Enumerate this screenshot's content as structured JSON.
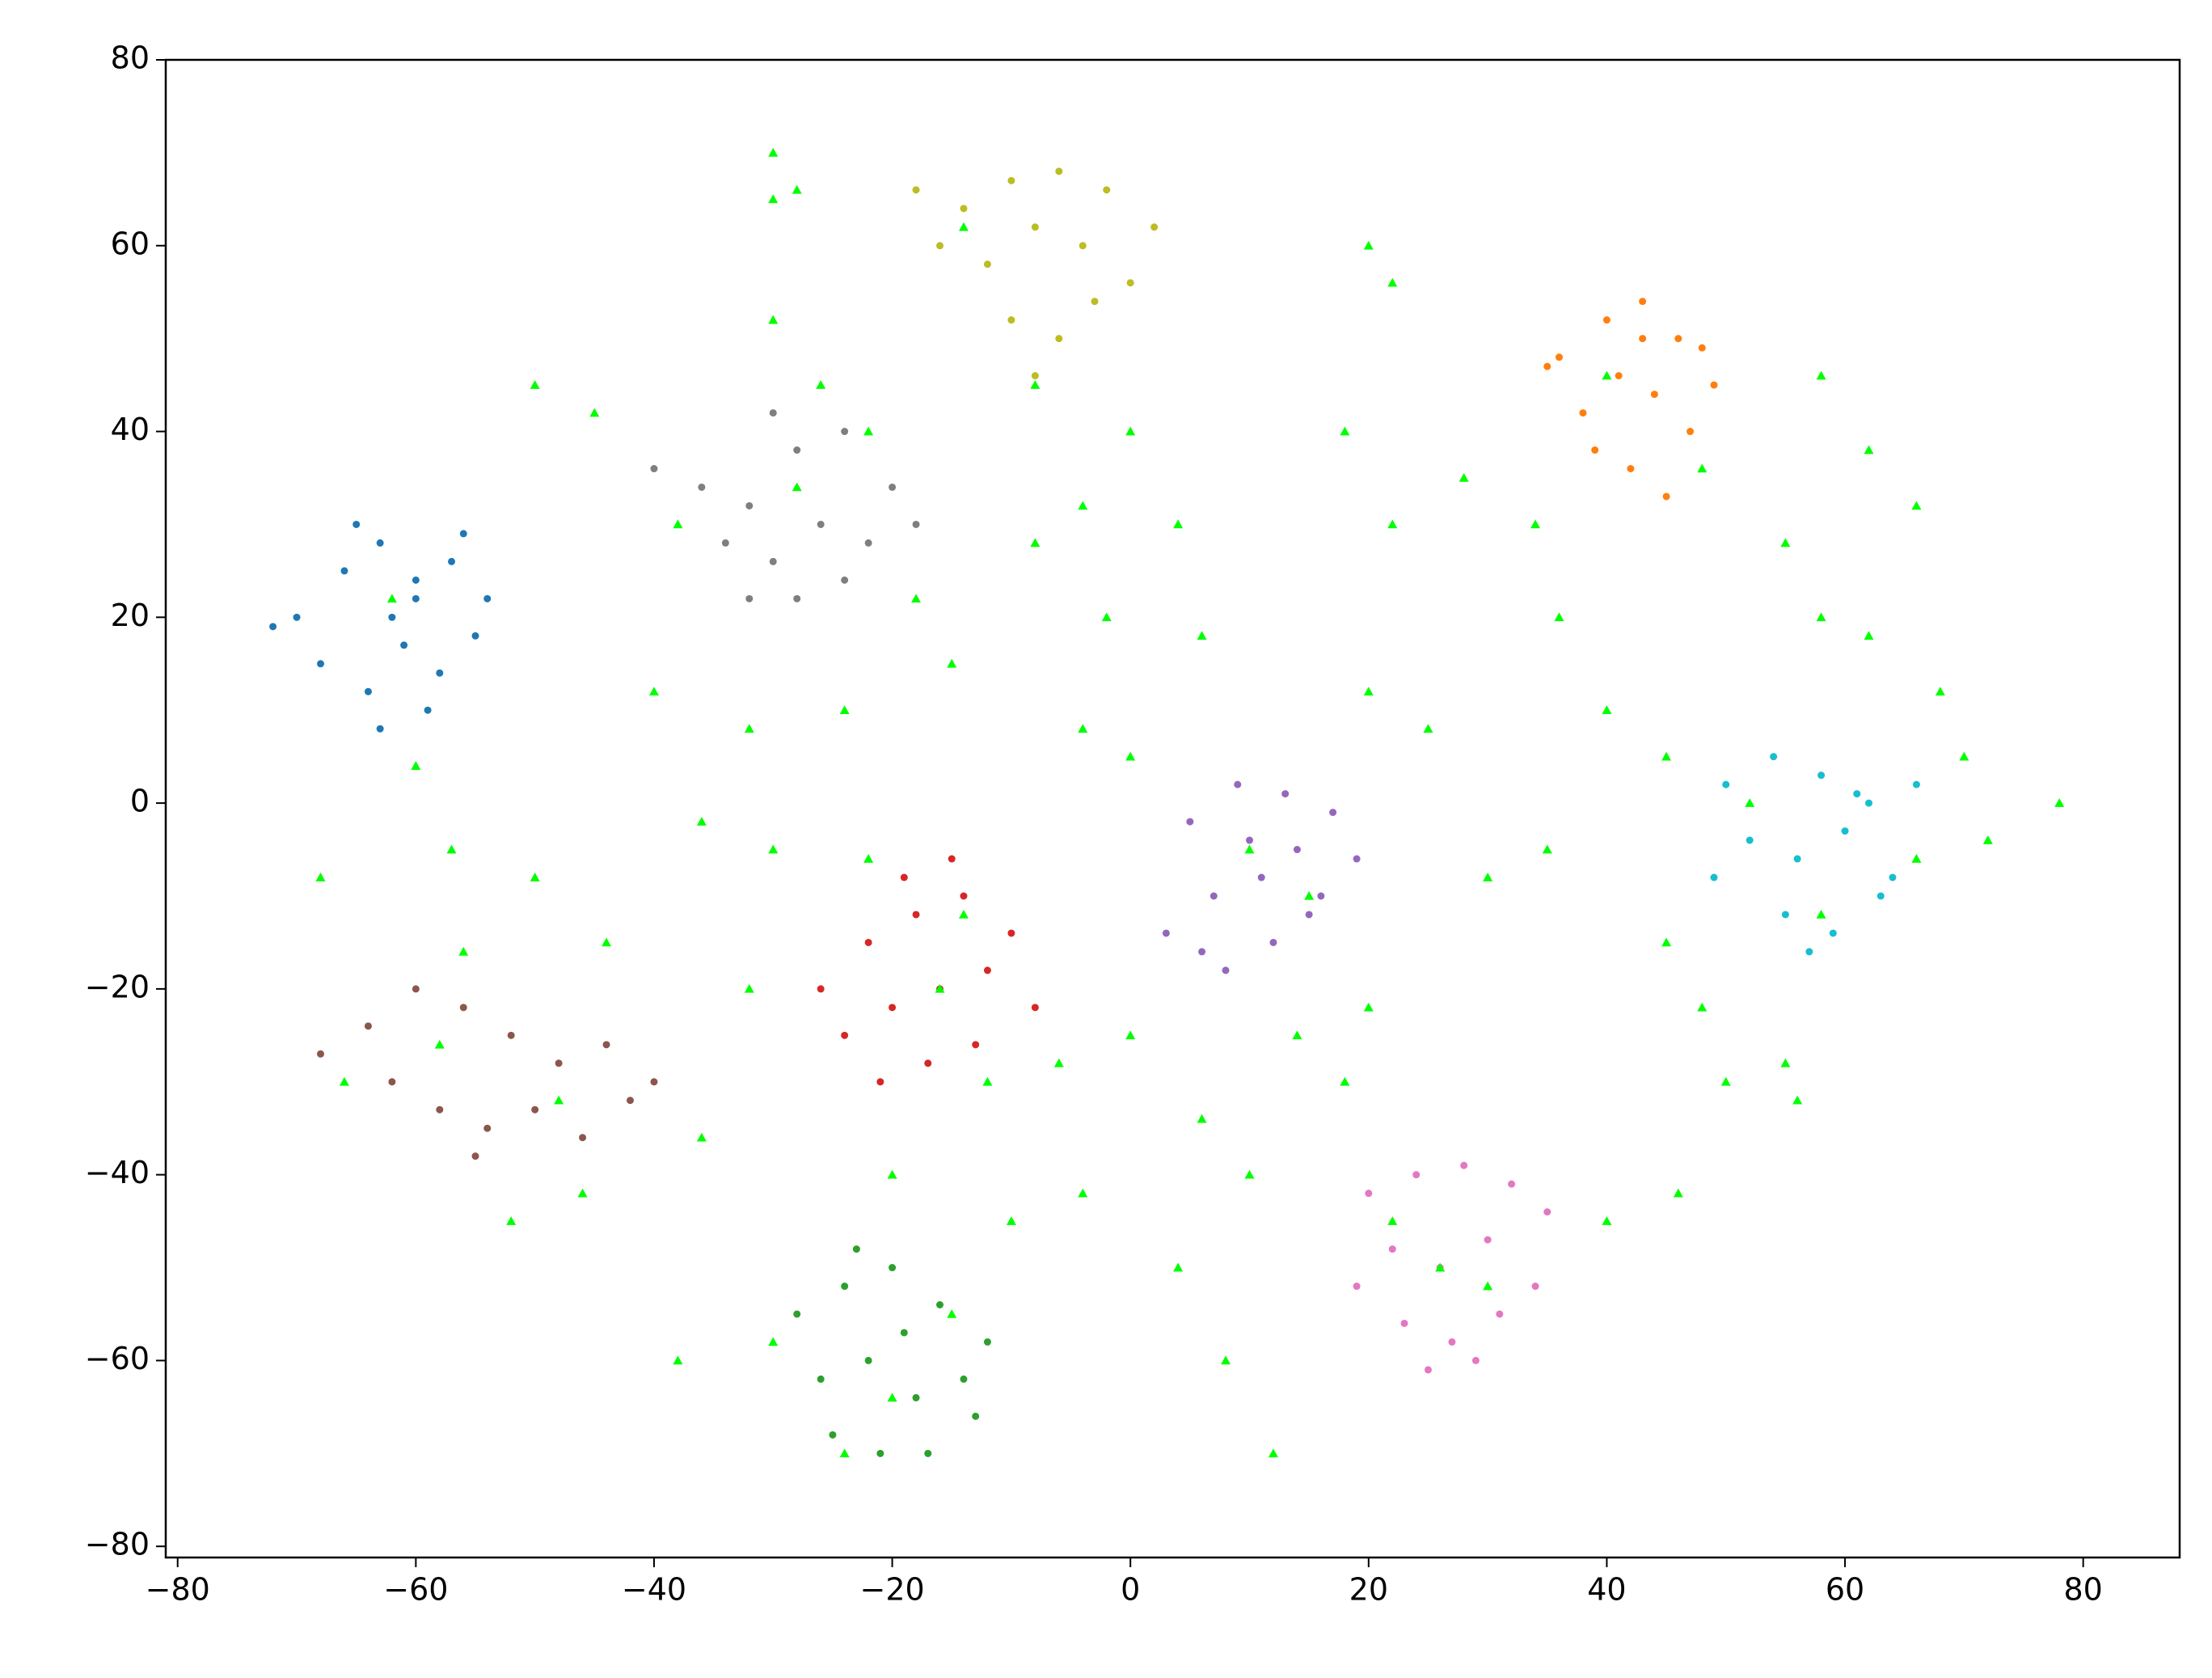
{
  "chart_data": {
    "type": "scatter",
    "xlim": [
      -81,
      88.1
    ],
    "ylim": [
      -81.2,
      80
    ],
    "xticks": [
      {
        "value": -80,
        "label": "−80"
      },
      {
        "value": -60,
        "label": "−60"
      },
      {
        "value": -40,
        "label": "−40"
      },
      {
        "value": -20,
        "label": "−20"
      },
      0,
      20,
      40,
      60,
      80
    ],
    "yticks": [
      {
        "value": -80,
        "label": "−80"
      },
      {
        "value": -60,
        "label": "−60"
      },
      {
        "value": -40,
        "label": "−40"
      },
      {
        "value": -20,
        "label": "−20"
      },
      0,
      20,
      40,
      60,
      80
    ],
    "grid": false,
    "series": [
      {
        "color": "#1f77b4",
        "marker": "circle",
        "x": [
          -70,
          -66,
          -63,
          -60,
          -57,
          -55,
          -68,
          -64,
          -61,
          -58,
          -54,
          -65,
          -62,
          -59,
          -72,
          -56,
          -60,
          -63
        ],
        "values": [
          20,
          25,
          28,
          22,
          26,
          18,
          15,
          12,
          17,
          14,
          22,
          30,
          20,
          10,
          19,
          29,
          24,
          8
        ]
      },
      {
        "color": "#ff7f0e",
        "marker": "circle",
        "x": [
          36,
          40,
          43,
          46,
          49,
          38,
          41,
          44,
          47,
          35,
          42,
          45,
          39,
          48,
          43
        ],
        "values": [
          48,
          52,
          54,
          50,
          45,
          42,
          46,
          44,
          40,
          47,
          36,
          33,
          38,
          49,
          50
        ]
      },
      {
        "color": "#2ca02c",
        "marker": "circle",
        "x": [
          -28,
          -24,
          -20,
          -16,
          -12,
          -26,
          -22,
          -18,
          -14,
          -25,
          -21,
          -17,
          -13,
          -19,
          -23
        ],
        "values": [
          -55,
          -52,
          -50,
          -54,
          -58,
          -62,
          -60,
          -64,
          -62,
          -68,
          -70,
          -70,
          -66,
          -57,
          -48
        ]
      },
      {
        "color": "#d62728",
        "marker": "circle",
        "x": [
          -26,
          -22,
          -18,
          -14,
          -10,
          -24,
          -20,
          -16,
          -12,
          -8,
          -21,
          -17,
          -13,
          -15,
          -19
        ],
        "values": [
          -20,
          -15,
          -12,
          -10,
          -14,
          -25,
          -22,
          -20,
          -18,
          -22,
          -30,
          -28,
          -26,
          -6,
          -8
        ]
      },
      {
        "color": "#9467bd",
        "marker": "circle",
        "x": [
          5,
          9,
          13,
          17,
          19,
          7,
          11,
          15,
          3,
          8,
          12,
          16,
          10,
          14,
          6
        ],
        "values": [
          -2,
          2,
          1,
          -1,
          -6,
          -10,
          -8,
          -12,
          -14,
          -18,
          -15,
          -10,
          -4,
          -5,
          -16
        ]
      },
      {
        "color": "#8c564b",
        "marker": "circle",
        "x": [
          -68,
          -64,
          -60,
          -56,
          -52,
          -48,
          -44,
          -40,
          -62,
          -58,
          -54,
          -50,
          -46,
          -42,
          -55
        ],
        "values": [
          -27,
          -24,
          -20,
          -22,
          -25,
          -28,
          -26,
          -30,
          -30,
          -33,
          -35,
          -33,
          -36,
          -32,
          -38
        ]
      },
      {
        "color": "#e377c2",
        "marker": "circle",
        "x": [
          20,
          24,
          28,
          32,
          35,
          22,
          26,
          30,
          34,
          23,
          27,
          31,
          25,
          29,
          19
        ],
        "values": [
          -42,
          -40,
          -39,
          -41,
          -44,
          -48,
          -50,
          -47,
          -52,
          -56,
          -58,
          -55,
          -61,
          -60,
          -52
        ]
      },
      {
        "color": "#7f7f7f",
        "marker": "circle",
        "x": [
          -40,
          -36,
          -32,
          -28,
          -24,
          -20,
          -34,
          -30,
          -26,
          -22,
          -18,
          -32,
          -28,
          -24,
          -30
        ],
        "values": [
          36,
          34,
          32,
          38,
          40,
          34,
          28,
          26,
          30,
          28,
          30,
          22,
          22,
          24,
          42
        ]
      },
      {
        "color": "#bcbd22",
        "marker": "circle",
        "x": [
          -18,
          -14,
          -10,
          -6,
          -2,
          2,
          -16,
          -12,
          -8,
          -4,
          0,
          -10,
          -6,
          -3,
          -8
        ],
        "values": [
          66,
          64,
          67,
          68,
          66,
          62,
          60,
          58,
          62,
          60,
          56,
          52,
          50,
          54,
          46
        ]
      },
      {
        "color": "#17becf",
        "marker": "circle",
        "x": [
          50,
          54,
          58,
          62,
          66,
          52,
          56,
          60,
          64,
          49,
          55,
          59,
          63,
          57,
          61
        ],
        "values": [
          2,
          5,
          3,
          0,
          2,
          -4,
          -6,
          -3,
          -8,
          -8,
          -12,
          -14,
          -10,
          -16,
          1
        ]
      },
      {
        "color": "#00ff00",
        "marker": "triangle",
        "x": [
          -30,
          -28,
          -50,
          -45,
          -30,
          -26,
          -22,
          -38,
          -18,
          -40,
          -32,
          -24,
          -36,
          -30,
          -22,
          -14,
          -60,
          -57,
          -68,
          -50,
          -56,
          -44,
          -66,
          -46,
          -52,
          -36,
          -32,
          -20,
          -10,
          -38,
          -30,
          -24,
          -15,
          -4,
          4,
          8,
          12,
          10,
          18,
          14,
          20,
          0,
          6,
          30,
          40,
          46,
          22,
          50,
          55,
          56,
          48,
          45,
          35,
          30,
          25,
          20,
          6,
          -4,
          0,
          -15,
          -8,
          -4,
          4,
          -8,
          0,
          -14,
          -30,
          20,
          22,
          18,
          22,
          28,
          34,
          36,
          48,
          55,
          58,
          62,
          66,
          58,
          62,
          68,
          70,
          78,
          72,
          40,
          45,
          52,
          58,
          66,
          -2,
          15,
          -12,
          -6,
          -48,
          -58,
          26,
          -20,
          -62,
          -28,
          -16,
          10,
          40
        ],
        "values": [
          70,
          66,
          45,
          42,
          52,
          45,
          40,
          30,
          22,
          12,
          8,
          10,
          -2,
          -5,
          -6,
          -12,
          4,
          -5,
          -8,
          -8,
          -16,
          -15,
          -30,
          -42,
          -45,
          -36,
          -20,
          -40,
          -45,
          -60,
          -58,
          -70,
          -55,
          -42,
          -50,
          -60,
          -70,
          -40,
          -30,
          -25,
          -22,
          -25,
          -34,
          -52,
          -45,
          -42,
          -45,
          -30,
          -28,
          -32,
          -22,
          -15,
          -5,
          -8,
          8,
          12,
          18,
          8,
          5,
          15,
          28,
          32,
          30,
          45,
          40,
          62,
          65,
          60,
          56,
          40,
          30,
          35,
          30,
          20,
          36,
          28,
          46,
          38,
          32,
          20,
          18,
          12,
          5,
          0,
          -4,
          10,
          5,
          0,
          -12,
          -6,
          20,
          -10,
          -30,
          -28,
          -32,
          -26,
          -50,
          -64,
          22,
          34,
          -20,
          -5,
          46
        ]
      }
    ]
  }
}
